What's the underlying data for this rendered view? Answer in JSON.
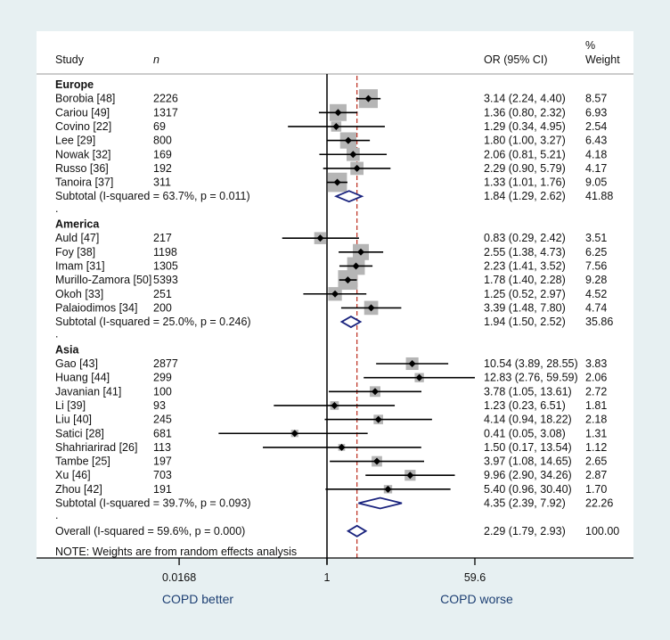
{
  "chart_data": {
    "type": "forest",
    "scale": "log",
    "xlim": [
      0.0168,
      59.6
    ],
    "xticks": [
      "0.0168",
      "1",
      "59.6"
    ],
    "xtick_values": [
      0.0168,
      1,
      59.6
    ],
    "null_line": 1,
    "overall_line": 2.29,
    "xlabel_left": "COPD better",
    "xlabel_right": "COPD worse",
    "headers": {
      "study": "Study",
      "n": "n",
      "or": "OR (95% CI)",
      "weight_pct": "%",
      "weight": "Weight"
    },
    "groups": [
      {
        "name": "Europe",
        "studies": [
          {
            "study": "Borobia [48]",
            "n": "2226",
            "or": 3.14,
            "lo": 2.24,
            "hi": 4.4,
            "ci": "3.14 (2.24, 4.40)",
            "weight": "8.57"
          },
          {
            "study": "Cariou [49]",
            "n": "1317",
            "or": 1.36,
            "lo": 0.8,
            "hi": 2.32,
            "ci": "1.36 (0.80, 2.32)",
            "weight": "6.93"
          },
          {
            "study": "Covino [22]",
            "n": "69",
            "or": 1.29,
            "lo": 0.34,
            "hi": 4.95,
            "ci": "1.29 (0.34, 4.95)",
            "weight": "2.54"
          },
          {
            "study": "Lee [29]",
            "n": "800",
            "or": 1.8,
            "lo": 1.0,
            "hi": 3.27,
            "ci": "1.80 (1.00, 3.27)",
            "weight": "6.43"
          },
          {
            "study": "Nowak [32]",
            "n": "169",
            "or": 2.06,
            "lo": 0.81,
            "hi": 5.21,
            "ci": "2.06 (0.81, 5.21)",
            "weight": "4.18"
          },
          {
            "study": "Russo [36]",
            "n": "192",
            "or": 2.29,
            "lo": 0.9,
            "hi": 5.79,
            "ci": "2.29 (0.90, 5.79)",
            "weight": "4.17"
          },
          {
            "study": "Tanoira [37]",
            "n": "311",
            "or": 1.33,
            "lo": 1.01,
            "hi": 1.76,
            "ci": "1.33 (1.01, 1.76)",
            "weight": "9.05"
          }
        ],
        "subtotal": {
          "label": "Subtotal  (I-squared = 63.7%, p = 0.011)",
          "or": 1.84,
          "lo": 1.29,
          "hi": 2.62,
          "ci": "1.84 (1.29, 2.62)",
          "weight": "41.88"
        }
      },
      {
        "name": "America",
        "studies": [
          {
            "study": "Auld [47]",
            "n": "217",
            "or": 0.83,
            "lo": 0.29,
            "hi": 2.42,
            "ci": "0.83 (0.29, 2.42)",
            "weight": "3.51"
          },
          {
            "study": "Foy [38]",
            "n": "1198",
            "or": 2.55,
            "lo": 1.38,
            "hi": 4.73,
            "ci": "2.55 (1.38, 4.73)",
            "weight": "6.25"
          },
          {
            "study": "Imam [31]",
            "n": "1305",
            "or": 2.23,
            "lo": 1.41,
            "hi": 3.52,
            "ci": "2.23 (1.41, 3.52)",
            "weight": "7.56"
          },
          {
            "study": "Murillo-Zamora [50]",
            "n": "5393",
            "or": 1.78,
            "lo": 1.4,
            "hi": 2.28,
            "ci": "1.78 (1.40, 2.28)",
            "weight": "9.28"
          },
          {
            "study": "Okoh [33]",
            "n": "251",
            "or": 1.25,
            "lo": 0.52,
            "hi": 2.97,
            "ci": "1.25 (0.52, 2.97)",
            "weight": "4.52"
          },
          {
            "study": "Palaiodimos [34]",
            "n": "200",
            "or": 3.39,
            "lo": 1.48,
            "hi": 7.8,
            "ci": "3.39 (1.48, 7.80)",
            "weight": "4.74"
          }
        ],
        "subtotal": {
          "label": "Subtotal  (I-squared = 25.0%, p = 0.246)",
          "or": 1.94,
          "lo": 1.5,
          "hi": 2.52,
          "ci": "1.94 (1.50, 2.52)",
          "weight": "35.86"
        }
      },
      {
        "name": "Asia",
        "studies": [
          {
            "study": "Gao [43]",
            "n": "2877",
            "or": 10.54,
            "lo": 3.89,
            "hi": 28.55,
            "ci": "10.54 (3.89, 28.55)",
            "weight": "3.83"
          },
          {
            "study": "Huang [44]",
            "n": "299",
            "or": 12.83,
            "lo": 2.76,
            "hi": 59.59,
            "ci": "12.83 (2.76, 59.59)",
            "weight": "2.06"
          },
          {
            "study": "Javanian [41]",
            "n": "100",
            "or": 3.78,
            "lo": 1.05,
            "hi": 13.61,
            "ci": "3.78 (1.05, 13.61)",
            "weight": "2.72"
          },
          {
            "study": "Li [39]",
            "n": "93",
            "or": 1.23,
            "lo": 0.23,
            "hi": 6.51,
            "ci": "1.23 (0.23, 6.51)",
            "weight": "1.81"
          },
          {
            "study": "Liu [40]",
            "n": "245",
            "or": 4.14,
            "lo": 0.94,
            "hi": 18.22,
            "ci": "4.14 (0.94, 18.22)",
            "weight": "2.18"
          },
          {
            "study": "Satici [28]",
            "n": "681",
            "or": 0.41,
            "lo": 0.05,
            "hi": 3.08,
            "ci": "0.41 (0.05, 3.08)",
            "weight": "1.31"
          },
          {
            "study": "Shahriarirad [26]",
            "n": "113",
            "or": 1.5,
            "lo": 0.17,
            "hi": 13.54,
            "ci": "1.50 (0.17, 13.54)",
            "weight": "1.12"
          },
          {
            "study": "Tambe [25]",
            "n": "197",
            "or": 3.97,
            "lo": 1.08,
            "hi": 14.65,
            "ci": "3.97 (1.08, 14.65)",
            "weight": "2.65"
          },
          {
            "study": "Xu [46]",
            "n": "703",
            "or": 9.96,
            "lo": 2.9,
            "hi": 34.26,
            "ci": "9.96 (2.90, 34.26)",
            "weight": "2.87"
          },
          {
            "study": "Zhou [42]",
            "n": "191",
            "or": 5.4,
            "lo": 0.96,
            "hi": 30.4,
            "ci": "5.40 (0.96, 30.40)",
            "weight": "1.70"
          }
        ],
        "subtotal": {
          "label": "Subtotal  (I-squared = 39.7%, p = 0.093)",
          "or": 4.35,
          "lo": 2.39,
          "hi": 7.92,
          "ci": "4.35 (2.39, 7.92)",
          "weight": "22.26"
        }
      }
    ],
    "overall": {
      "label": "Overall  (I-squared = 59.6%, p = 0.000)",
      "or": 2.29,
      "lo": 1.79,
      "hi": 2.93,
      "ci": "2.29 (1.79, 2.93)",
      "weight": "100.00"
    },
    "separator": ".",
    "note": "NOTE: Weights are from random effects analysis",
    "colors": {
      "diamond": "#1a237e",
      "null_line": "#000000",
      "overall_line": "#c0392b",
      "square": "#b5b5b5",
      "axis_label": "#1d3f73",
      "background": "#e7f0f2"
    }
  }
}
